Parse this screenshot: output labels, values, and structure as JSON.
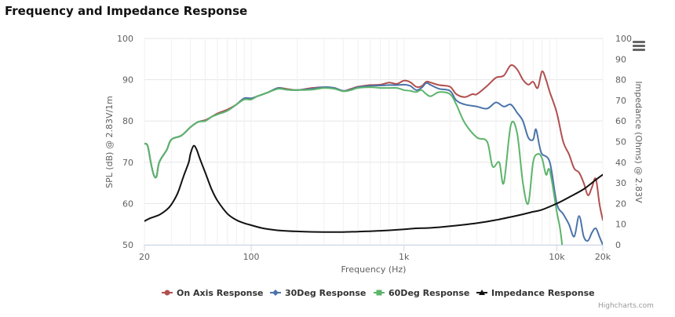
{
  "page": {
    "title": "Frequency and Impedance Response",
    "credits": "Highcharts.com"
  },
  "icons": {
    "menu": "hamburger-menu-icon"
  },
  "chart_data": {
    "type": "line",
    "title": "",
    "xlabel": "Frequency (Hz)",
    "ylabel": "SPL (dB) @ 2.83V/1m",
    "y2label": "Impedance (Ohms) @ 2.83V",
    "xscale": "log",
    "xlim": [
      20,
      20000
    ],
    "ylim": [
      50,
      100
    ],
    "y2lim": [
      0,
      100
    ],
    "x_ticks": [
      {
        "value": 20,
        "label": "20"
      },
      {
        "value": 100,
        "label": "100"
      },
      {
        "value": 1000,
        "label": "1k"
      },
      {
        "value": 10000,
        "label": "10k"
      },
      {
        "value": 20000,
        "label": "20k"
      }
    ],
    "y_ticks": [
      50,
      60,
      70,
      80,
      90,
      100
    ],
    "y2_ticks": [
      0,
      10,
      20,
      30,
      40,
      50,
      60,
      70,
      80,
      90,
      100
    ],
    "grid": true,
    "legend_position": "bottom-center",
    "series": [
      {
        "name": "On Axis Response",
        "color": "#b14f4f",
        "axis": "left",
        "marker": "circle",
        "points": [
          [
            20,
            74.5
          ],
          [
            21,
            74
          ],
          [
            22,
            70
          ],
          [
            23,
            67
          ],
          [
            24,
            66.5
          ],
          [
            25,
            70
          ],
          [
            28,
            73
          ],
          [
            30,
            75.5
          ],
          [
            35,
            76.5
          ],
          [
            40,
            78.5
          ],
          [
            45,
            79.8
          ],
          [
            50,
            80.2
          ],
          [
            55,
            81
          ],
          [
            60,
            81.8
          ],
          [
            70,
            82.8
          ],
          [
            80,
            84
          ],
          [
            90,
            85.5
          ],
          [
            100,
            85.5
          ],
          [
            110,
            86
          ],
          [
            130,
            87
          ],
          [
            150,
            88
          ],
          [
            170,
            87.8
          ],
          [
            200,
            87.5
          ],
          [
            250,
            88
          ],
          [
            300,
            88.2
          ],
          [
            350,
            88
          ],
          [
            400,
            87.3
          ],
          [
            450,
            87.8
          ],
          [
            500,
            88.3
          ],
          [
            600,
            88.7
          ],
          [
            700,
            88.8
          ],
          [
            800,
            89.3
          ],
          [
            900,
            89
          ],
          [
            1000,
            89.8
          ],
          [
            1100,
            89.4
          ],
          [
            1200,
            88.3
          ],
          [
            1300,
            88.4
          ],
          [
            1400,
            89.5
          ],
          [
            1500,
            89.3
          ],
          [
            1700,
            88.7
          ],
          [
            2000,
            88.3
          ],
          [
            2200,
            86.5
          ],
          [
            2500,
            85.8
          ],
          [
            2800,
            86.5
          ],
          [
            3000,
            86.5
          ],
          [
            3500,
            88.5
          ],
          [
            4000,
            90.5
          ],
          [
            4500,
            91
          ],
          [
            5000,
            93.5
          ],
          [
            5500,
            92.5
          ],
          [
            6000,
            90
          ],
          [
            6500,
            88.8
          ],
          [
            7000,
            89.5
          ],
          [
            7500,
            88
          ],
          [
            8000,
            92
          ],
          [
            8500,
            90
          ],
          [
            9000,
            87
          ],
          [
            10000,
            82
          ],
          [
            11000,
            75
          ],
          [
            12000,
            72
          ],
          [
            13000,
            68.5
          ],
          [
            14000,
            67.5
          ],
          [
            15000,
            65
          ],
          [
            16000,
            62
          ],
          [
            17000,
            64
          ],
          [
            18000,
            66
          ],
          [
            19000,
            60
          ],
          [
            20000,
            56
          ]
        ]
      },
      {
        "name": "30Deg Response",
        "color": "#4a74a8",
        "axis": "left",
        "marker": "diamond",
        "points": [
          [
            20,
            74.5
          ],
          [
            21,
            74
          ],
          [
            22,
            70
          ],
          [
            23,
            67
          ],
          [
            24,
            66.5
          ],
          [
            25,
            70
          ],
          [
            28,
            73
          ],
          [
            30,
            75.5
          ],
          [
            35,
            76.5
          ],
          [
            40,
            78.5
          ],
          [
            45,
            79.8
          ],
          [
            50,
            80
          ],
          [
            55,
            81
          ],
          [
            60,
            81.6
          ],
          [
            70,
            82.5
          ],
          [
            80,
            84
          ],
          [
            90,
            85.5
          ],
          [
            100,
            85.5
          ],
          [
            110,
            86
          ],
          [
            130,
            87
          ],
          [
            150,
            88
          ],
          [
            170,
            87.6
          ],
          [
            200,
            87.5
          ],
          [
            250,
            87.8
          ],
          [
            300,
            88.2
          ],
          [
            350,
            88
          ],
          [
            400,
            87.3
          ],
          [
            450,
            87.6
          ],
          [
            500,
            88.2
          ],
          [
            600,
            88.5
          ],
          [
            700,
            88.6
          ],
          [
            800,
            88.7
          ],
          [
            900,
            88.7
          ],
          [
            1000,
            88.8
          ],
          [
            1100,
            88.5
          ],
          [
            1200,
            87.5
          ],
          [
            1300,
            88
          ],
          [
            1400,
            89.2
          ],
          [
            1500,
            88.7
          ],
          [
            1700,
            87.8
          ],
          [
            2000,
            87.3
          ],
          [
            2200,
            85
          ],
          [
            2500,
            84
          ],
          [
            3000,
            83.5
          ],
          [
            3500,
            83
          ],
          [
            4000,
            84.5
          ],
          [
            4500,
            83.5
          ],
          [
            5000,
            84
          ],
          [
            5500,
            82
          ],
          [
            6000,
            80
          ],
          [
            6500,
            76
          ],
          [
            7000,
            75.5
          ],
          [
            7300,
            78
          ],
          [
            7700,
            74
          ],
          [
            8000,
            72
          ],
          [
            9000,
            70
          ],
          [
            10000,
            60
          ],
          [
            11000,
            57.5
          ],
          [
            12000,
            55
          ],
          [
            13000,
            52
          ],
          [
            14000,
            57
          ],
          [
            15000,
            52
          ],
          [
            16000,
            51
          ],
          [
            17000,
            53
          ],
          [
            18000,
            54
          ],
          [
            19000,
            52
          ],
          [
            20000,
            50
          ]
        ]
      },
      {
        "name": "60Deg Response",
        "color": "#5db46b",
        "axis": "left",
        "marker": "square",
        "points": [
          [
            20,
            74.5
          ],
          [
            21,
            74
          ],
          [
            22,
            70
          ],
          [
            23,
            67
          ],
          [
            24,
            66.5
          ],
          [
            25,
            70
          ],
          [
            28,
            73
          ],
          [
            30,
            75.5
          ],
          [
            35,
            76.5
          ],
          [
            40,
            78.5
          ],
          [
            45,
            79.8
          ],
          [
            50,
            80
          ],
          [
            55,
            81
          ],
          [
            60,
            81.6
          ],
          [
            70,
            82.5
          ],
          [
            80,
            84
          ],
          [
            90,
            85.2
          ],
          [
            100,
            85.2
          ],
          [
            110,
            86
          ],
          [
            130,
            87
          ],
          [
            150,
            87.8
          ],
          [
            170,
            87.6
          ],
          [
            200,
            87.5
          ],
          [
            250,
            87.6
          ],
          [
            300,
            88
          ],
          [
            350,
            87.8
          ],
          [
            400,
            87.2
          ],
          [
            450,
            87.5
          ],
          [
            500,
            88
          ],
          [
            600,
            88.2
          ],
          [
            700,
            88
          ],
          [
            800,
            88
          ],
          [
            900,
            88
          ],
          [
            1000,
            87.5
          ],
          [
            1100,
            87.3
          ],
          [
            1200,
            87
          ],
          [
            1300,
            87.5
          ],
          [
            1400,
            86.5
          ],
          [
            1500,
            86
          ],
          [
            1700,
            87
          ],
          [
            2000,
            86.5
          ],
          [
            2200,
            84
          ],
          [
            2500,
            79.5
          ],
          [
            3000,
            76
          ],
          [
            3500,
            75
          ],
          [
            3800,
            69
          ],
          [
            4200,
            70
          ],
          [
            4500,
            65
          ],
          [
            5000,
            79
          ],
          [
            5500,
            77
          ],
          [
            6000,
            65
          ],
          [
            6500,
            60
          ],
          [
            7000,
            70
          ],
          [
            7500,
            72
          ],
          [
            8000,
            71
          ],
          [
            8500,
            67
          ],
          [
            9000,
            68
          ],
          [
            10000,
            58
          ],
          [
            10500,
            54
          ],
          [
            11000,
            48
          ]
        ]
      },
      {
        "name": "Impedance Response",
        "color": "#111111",
        "axis": "right",
        "marker": "triangle",
        "points": [
          [
            20,
            11.5
          ],
          [
            22,
            13
          ],
          [
            25,
            14.5
          ],
          [
            28,
            17
          ],
          [
            30,
            19.5
          ],
          [
            33,
            25
          ],
          [
            36,
            33
          ],
          [
            39,
            40
          ],
          [
            40,
            44
          ],
          [
            42,
            48
          ],
          [
            44,
            46
          ],
          [
            46,
            42
          ],
          [
            50,
            35
          ],
          [
            55,
            27
          ],
          [
            60,
            21.5
          ],
          [
            70,
            15
          ],
          [
            80,
            12
          ],
          [
            90,
            10.5
          ],
          [
            100,
            9.5
          ],
          [
            120,
            8
          ],
          [
            150,
            7
          ],
          [
            200,
            6.5
          ],
          [
            300,
            6.2
          ],
          [
            400,
            6.2
          ],
          [
            500,
            6.4
          ],
          [
            700,
            6.8
          ],
          [
            1000,
            7.5
          ],
          [
            1200,
            8
          ],
          [
            1500,
            8.2
          ],
          [
            2000,
            9
          ],
          [
            3000,
            10.5
          ],
          [
            4000,
            12
          ],
          [
            5000,
            13.5
          ],
          [
            6000,
            14.8
          ],
          [
            7000,
            16
          ],
          [
            8000,
            17
          ],
          [
            10000,
            20
          ],
          [
            12000,
            23
          ],
          [
            15000,
            27
          ],
          [
            18000,
            31.5
          ],
          [
            20000,
            34
          ]
        ]
      }
    ]
  }
}
